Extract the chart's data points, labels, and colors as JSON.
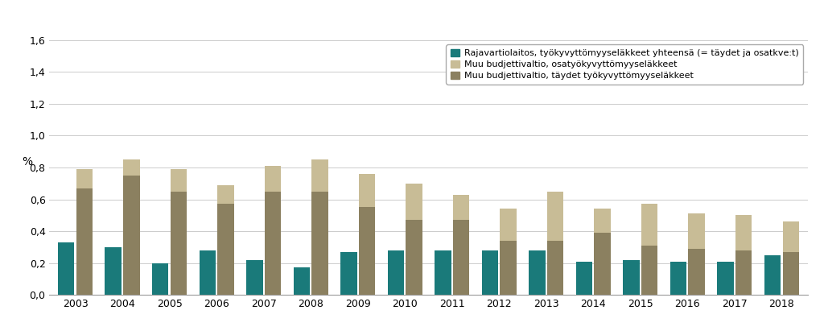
{
  "years": [
    2003,
    2004,
    2005,
    2006,
    2007,
    2008,
    2009,
    2010,
    2011,
    2012,
    2013,
    2014,
    2015,
    2016,
    2017,
    2018
  ],
  "rajavartio": [
    0.33,
    0.3,
    0.2,
    0.28,
    0.22,
    0.17,
    0.27,
    0.28,
    0.28,
    0.28,
    0.28,
    0.21,
    0.22,
    0.21,
    0.21,
    0.25
  ],
  "muu_taydet": [
    0.67,
    0.75,
    0.65,
    0.57,
    0.65,
    0.65,
    0.55,
    0.47,
    0.47,
    0.34,
    0.34,
    0.39,
    0.31,
    0.29,
    0.28,
    0.27
  ],
  "muu_osa": [
    0.12,
    0.1,
    0.14,
    0.12,
    0.16,
    0.2,
    0.21,
    0.23,
    0.16,
    0.2,
    0.31,
    0.15,
    0.26,
    0.22,
    0.22,
    0.19
  ],
  "color_rajavartio": "#1a7a7a",
  "color_taydet": "#8b8060",
  "color_osa": "#c8bc96",
  "legend_rajavartio": "Rajavartiolaitos, työkyvyttömyyseläkkeet yhteensä (= täydet ja osatkve:t)",
  "legend_osa": "Muu budjettivaltio, osatyökyvyttömyyseläkkeet",
  "legend_taydet": "Muu budjettivaltio, täydet työkyvyttömyyseläkkeet",
  "ylabel": "%",
  "ylim": [
    0,
    1.6
  ],
  "yticks": [
    0.0,
    0.2,
    0.4,
    0.6,
    0.8,
    1.0,
    1.2,
    1.4,
    1.6
  ],
  "ytick_labels": [
    "0,0",
    "0,2",
    "0,4",
    "0,6",
    "0,8",
    "1,0",
    "1,2",
    "1,4",
    "1,6"
  ],
  "background_color": "#ffffff",
  "bar_width": 0.35,
  "bar_gap": 0.04
}
